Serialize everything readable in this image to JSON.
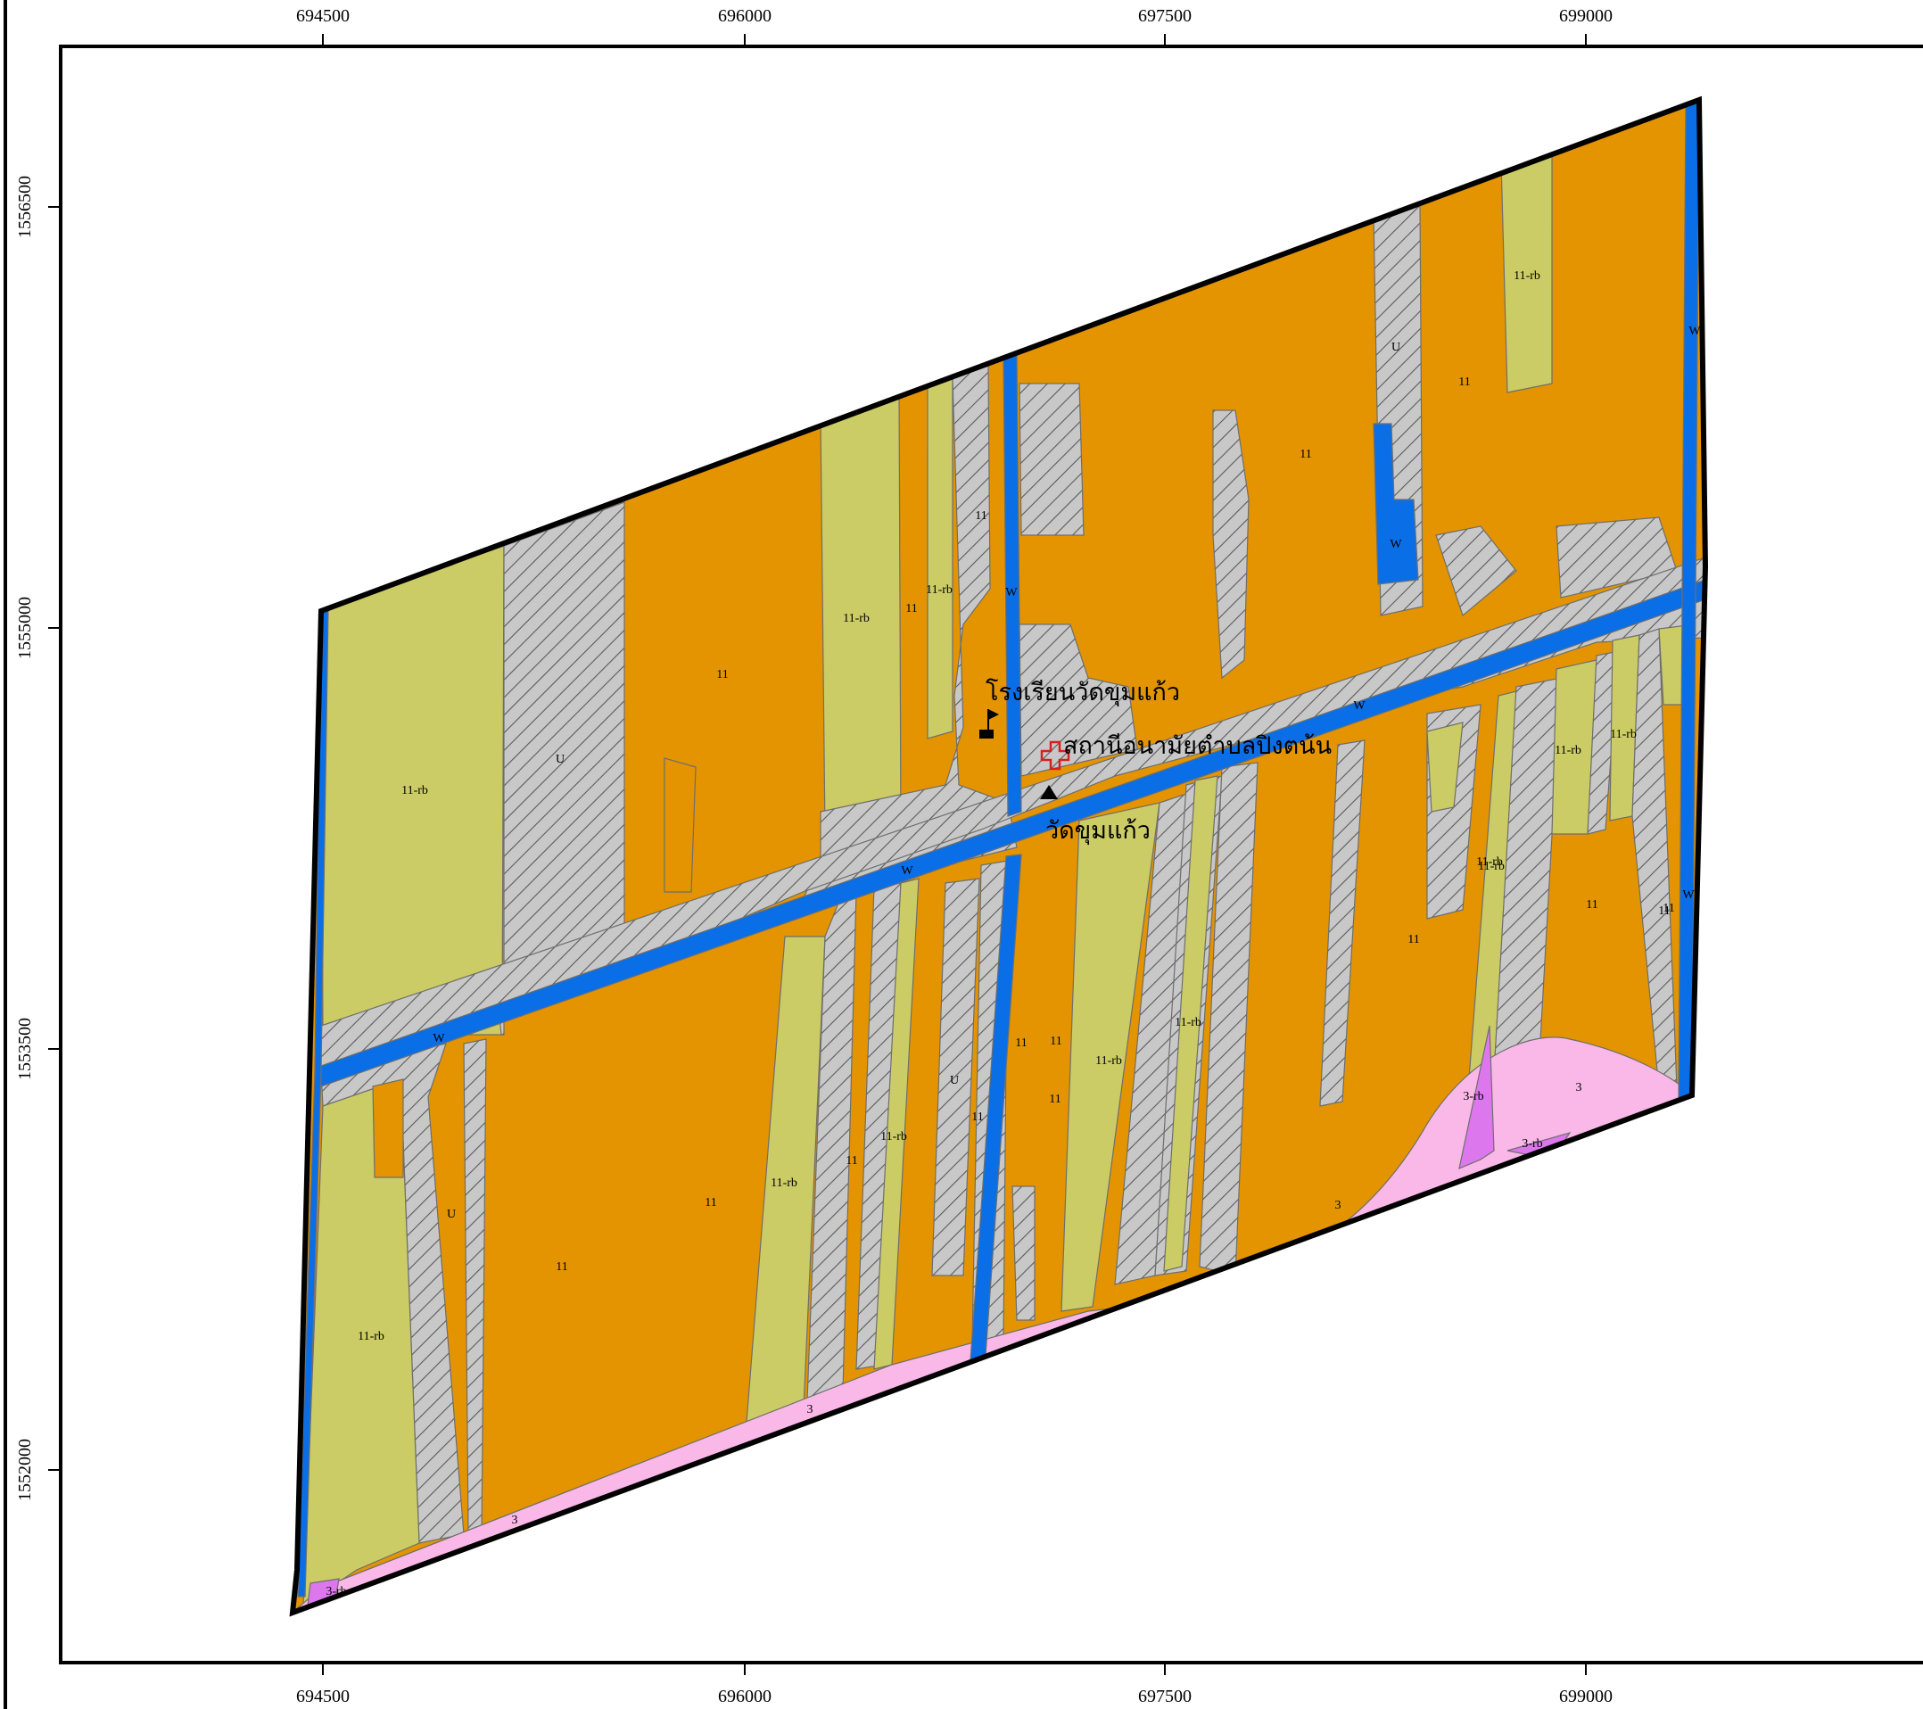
{
  "map": {
    "colors": {
      "zone_11": "#e39400",
      "zone_11_rb": "#cccc66",
      "zone_U": "#c8c8c8",
      "zone_W": "#0a6ee6",
      "zone_3": "#f9b8e8",
      "zone_3_rb": "#dd77ee",
      "frame": "#000000",
      "symbol_red": "#d62020"
    },
    "top_axis_ticks": [
      "694500",
      "696000",
      "697500",
      "699000"
    ],
    "bottom_axis_ticks": [
      "694500",
      "696000",
      "697500",
      "699000"
    ],
    "left_axis_ticks": [
      "1556500",
      "1555000",
      "1553500",
      "1552000"
    ],
    "places": [
      {
        "name": "โรงเรียนวัดขุมแก้ว",
        "icon": "flag-icon"
      },
      {
        "name": "สถานีอนามัยตำบลปิงตน้น",
        "icon": "red-cross-icon"
      },
      {
        "name": "วัดขุมแก้ว",
        "icon": "temple-triangle-icon"
      }
    ],
    "zone_labels": [
      "U",
      "11-rb",
      "11",
      "11-rb",
      "11",
      "11-rb",
      "11",
      "W",
      "U",
      "11",
      "11",
      "11-rb",
      "W",
      "W",
      "11-rb",
      "W",
      "W",
      "W",
      "11-rb",
      "11-rb",
      "11",
      "11",
      "11-rb",
      "11",
      "11",
      "U",
      "11-rb",
      "11",
      "11-rb",
      "11",
      "11",
      "11-rb",
      "11",
      "U",
      "11",
      "11",
      "11",
      "11-rb",
      "11-rb",
      "3-rb",
      "3",
      "3-rb",
      "3",
      "3",
      "3",
      "3-rb",
      "W"
    ]
  }
}
